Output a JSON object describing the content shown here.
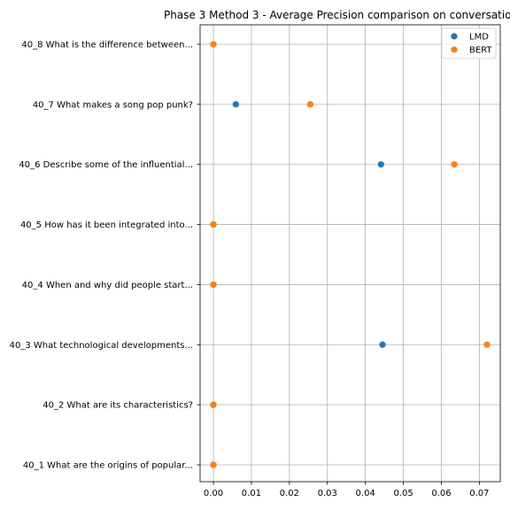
{
  "chart_data": {
    "type": "scatter",
    "title": "Phase 3 Method 3 - Average Precision comparison on conversatio",
    "xlabel": "",
    "ylabel": "",
    "xlim": [
      -0.0035,
      0.0755
    ],
    "xticks": [
      0.0,
      0.01,
      0.02,
      0.03,
      0.04,
      0.05,
      0.06,
      0.07
    ],
    "xtick_labels": [
      "0.00",
      "0.01",
      "0.02",
      "0.03",
      "0.04",
      "0.05",
      "0.06",
      "0.07"
    ],
    "categories": [
      "40_1 What are the origins of popular...",
      "40_2 What are its characteristics?",
      "40_3 What technological developments...",
      "40_4 When and why did people start...",
      "40_5 How has it been integrated into...",
      "40_6 Describe some of the influential...",
      "40_7 What makes a song pop punk?",
      "40_8 What is the difference between..."
    ],
    "grid": true,
    "legend_position": "top-right",
    "series": [
      {
        "name": "LMD",
        "color": "#1f77b4",
        "values": [
          0.0,
          0.0,
          0.0445,
          0.0,
          0.0,
          0.0441,
          0.0059,
          0.0
        ]
      },
      {
        "name": "BERT",
        "color": "#ff7f0e",
        "values": [
          0.0,
          0.0,
          0.072,
          0.0,
          0.0,
          0.0634,
          0.0255,
          0.0
        ]
      }
    ]
  }
}
